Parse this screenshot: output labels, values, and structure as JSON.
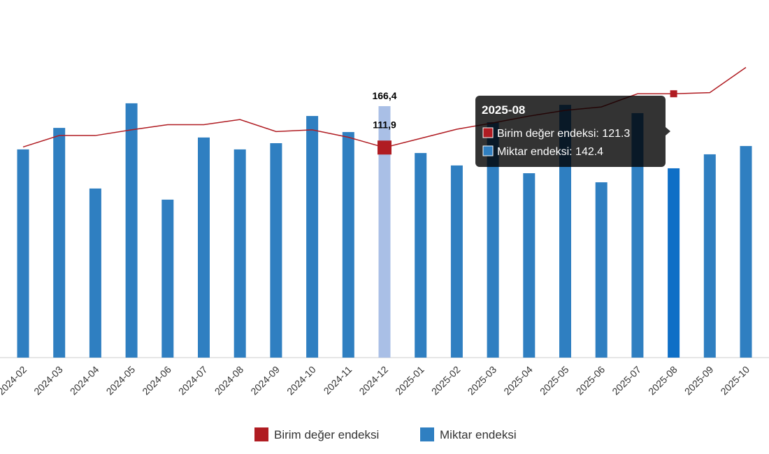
{
  "chart_data": {
    "type": "bar-line",
    "categories": [
      "2024-02",
      "2024-03",
      "2024-04",
      "2024-05",
      "2024-06",
      "2024-07",
      "2024-08",
      "2024-09",
      "2024-10",
      "2024-11",
      "2024-12",
      "2025-01",
      "2025-02",
      "2025-03",
      "2025-04",
      "2025-05",
      "2025-06",
      "2025-07",
      "2025-08",
      "2025-09",
      "2025-10"
    ],
    "ylim": [
      69.3,
      196.6
    ],
    "y2lim": [
      75.2,
      132.8
    ],
    "series": [
      {
        "name": "Birim değer endeksi",
        "type": "line",
        "axis": "y2",
        "color": "#b01c22",
        "values": [
          112.0,
          114.0,
          114.0,
          115.0,
          115.9,
          115.9,
          116.8,
          114.7,
          115.0,
          113.7,
          111.9,
          113.5,
          115.1,
          116.2,
          117.4,
          118.4,
          119.0,
          121.3,
          121.3,
          121.5,
          125.9
        ],
        "value_labels": [
          null,
          null,
          null,
          null,
          null,
          null,
          null,
          null,
          null,
          null,
          "111,9",
          null,
          null,
          null,
          null,
          null,
          null,
          null,
          null,
          null,
          null
        ]
      },
      {
        "name": "Miktar endeksi",
        "type": "bar",
        "color": "#2f7fc1",
        "values": [
          149.7,
          158.0,
          134.6,
          167.5,
          130.3,
          154.3,
          149.7,
          152.1,
          162.6,
          156.4,
          166.4,
          148.3,
          143.5,
          160.2,
          140.5,
          166.9,
          137.0,
          163.7,
          142.4,
          147.8,
          151.0
        ],
        "value_labels": [
          null,
          null,
          null,
          null,
          null,
          null,
          null,
          null,
          null,
          null,
          "166,4",
          null,
          null,
          null,
          null,
          null,
          null,
          null,
          null,
          null,
          null
        ]
      }
    ],
    "tooltip": {
      "title": "2025-08",
      "items": [
        "Birim değer endeksi: 121.3",
        "Miktar endeksi: 142.4"
      ]
    }
  }
}
